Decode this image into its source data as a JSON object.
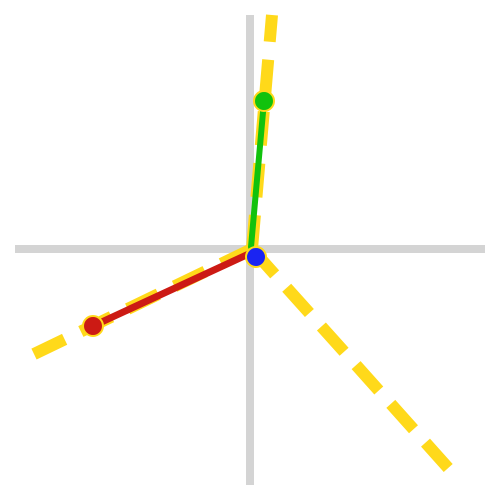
{
  "colors": {
    "background": "#ffffff",
    "axes": "#d4d4d4",
    "guide_dash": "#ffd91a",
    "segment_red": "#cc1a14",
    "segment_green": "#11c20d",
    "joint_red": "#cc1a14",
    "joint_green": "#11c20d",
    "joint_origin": "#1a24f2",
    "joint_outline": "#ffd91a"
  },
  "diagram": {
    "axes": [
      "horizontal-axis",
      "vertical-axis"
    ],
    "guides": [
      "guide-up",
      "guide-left",
      "guide-down-right"
    ],
    "segments": [
      {
        "name": "red-segment",
        "color_key": "segment_red"
      },
      {
        "name": "green-segment",
        "color_key": "segment_green"
      }
    ],
    "joints": [
      {
        "name": "red-endpoint",
        "color_key": "joint_red"
      },
      {
        "name": "green-endpoint",
        "color_key": "joint_green"
      },
      {
        "name": "origin-joint",
        "color_key": "joint_origin"
      }
    ]
  }
}
